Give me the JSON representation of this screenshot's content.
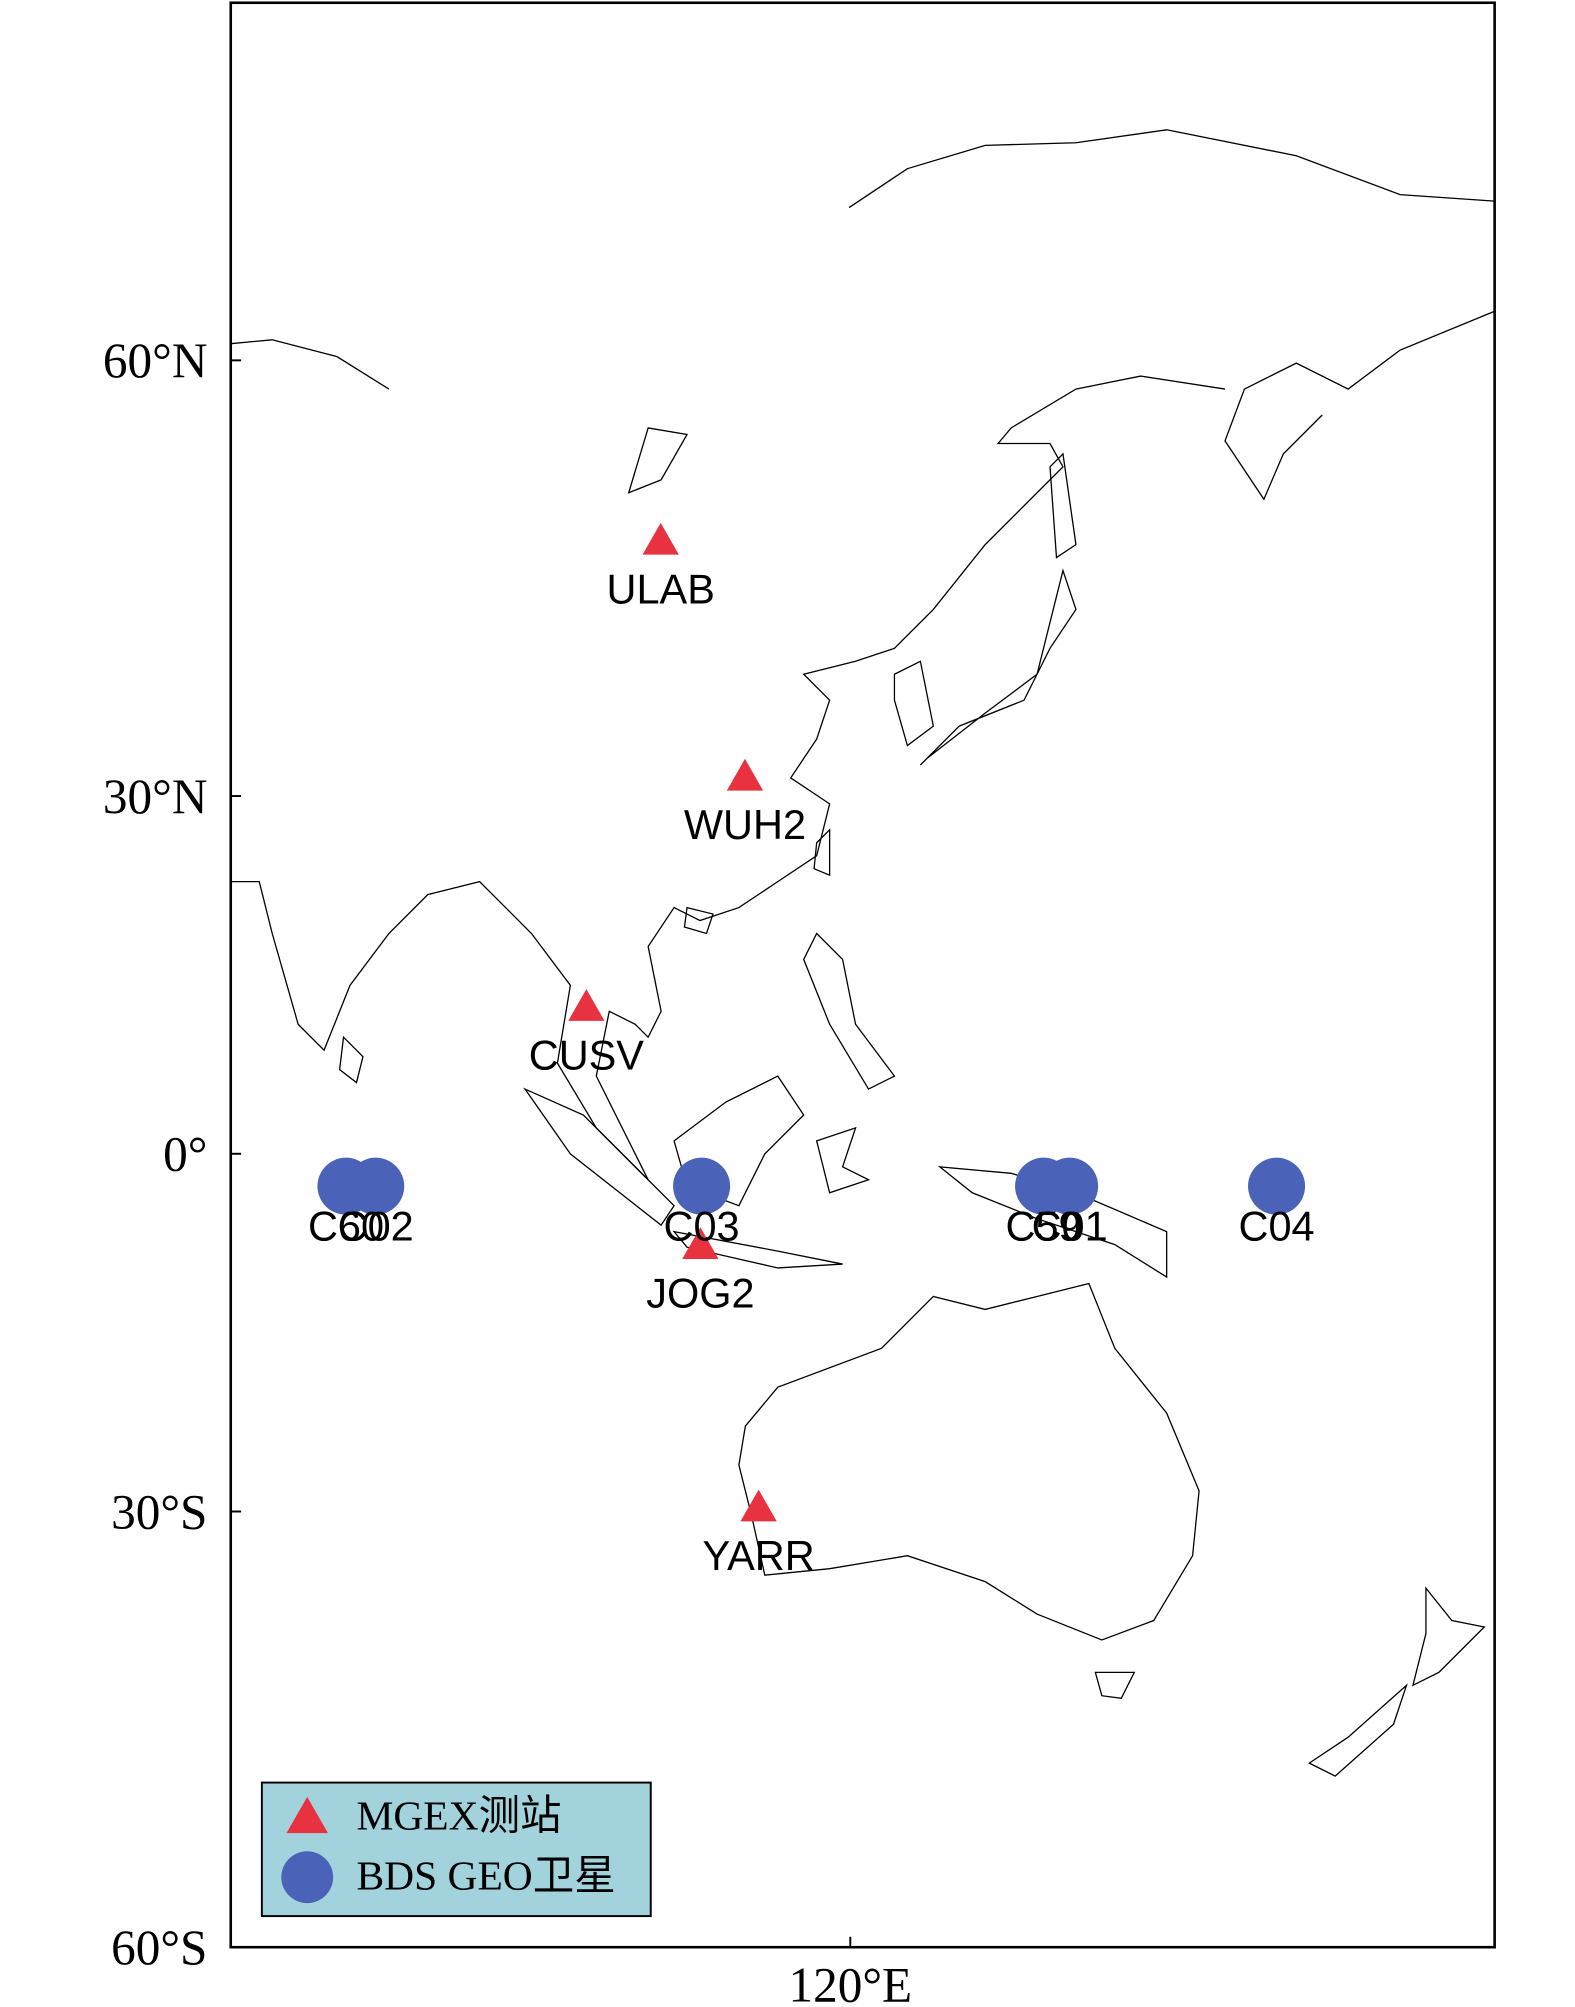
{
  "chart_data": {
    "type": "scatter",
    "projection": "miller",
    "xlim": [
      70,
      172
    ],
    "ylim": [
      -60,
      77.5
    ],
    "xticks": [
      {
        "value": 120,
        "label": "120°E"
      }
    ],
    "yticks": [
      {
        "value": -60,
        "label": "60°S"
      },
      {
        "value": -30,
        "label": "30°S"
      },
      {
        "value": 0,
        "label": "0°"
      },
      {
        "value": 30,
        "label": "30°N"
      },
      {
        "value": 60,
        "label": "60°N"
      }
    ],
    "legend": "lower left",
    "series": [
      {
        "name": "MGEX测站",
        "color": "#e8323f",
        "marker": "triangle",
        "labels": [
          "ULAB",
          "WUH2",
          "CUSV",
          "JOG2",
          "YARR"
        ],
        "x": [
          104.7,
          111.5,
          98.7,
          107.9,
          112.6
        ],
        "y": [
          48.7,
          31.5,
          12.6,
          -7.9,
          -29.7
        ]
      },
      {
        "name": "BDS GEO卫星",
        "color": "#4a62b8",
        "marker": "circle",
        "labels": [
          "C60",
          "C02",
          "C03",
          "C59",
          "C01",
          "C04"
        ],
        "x": [
          79.3,
          81.7,
          108.0,
          135.6,
          137.7,
          154.4
        ],
        "y": [
          -2.8,
          -2.8,
          -2.8,
          -2.8,
          -2.8,
          -2.8
        ]
      }
    ]
  }
}
